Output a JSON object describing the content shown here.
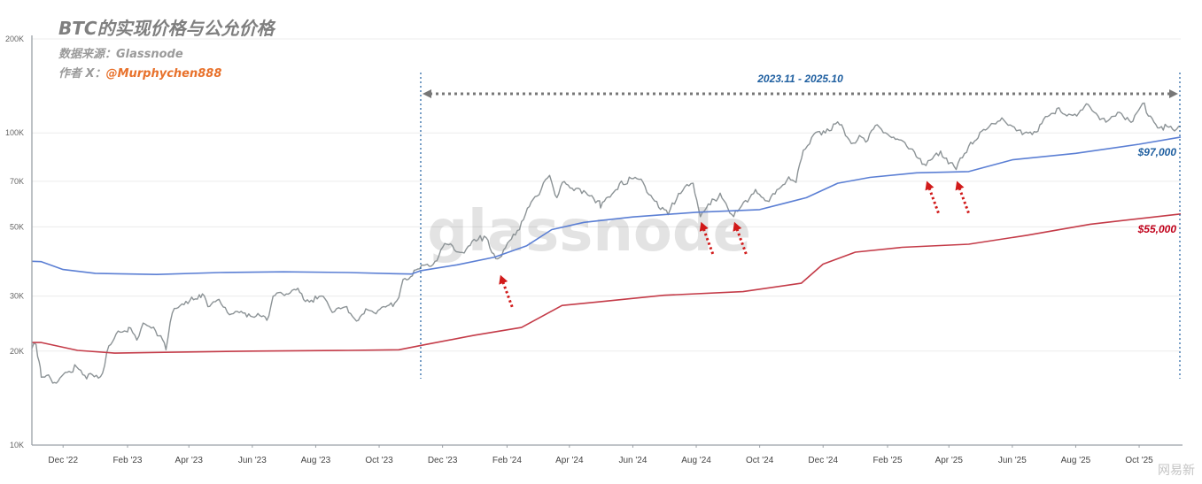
{
  "header": {
    "title": "BTC的实现价格与公允价格",
    "source": "数据来源：Glassnode",
    "author_label": "作者 X：",
    "author_handle": "@Murphychen888"
  },
  "watermark": "网易新",
  "chart_data": {
    "type": "line",
    "title": "BTC的实现价格与公允价格",
    "y_scale": "log",
    "ylim": [
      10000,
      200000
    ],
    "y_ticks": [
      10000,
      20000,
      30000,
      50000,
      70000,
      100000,
      200000
    ],
    "y_tick_labels": [
      "10K",
      "20K",
      "30K",
      "50K",
      "70K",
      "100K",
      "200K"
    ],
    "x_range": [
      "2022-11-01",
      "2025-11-10"
    ],
    "x_ticks": [
      "2022-12-01",
      "2023-02-01",
      "2023-04-01",
      "2023-06-01",
      "2023-08-01",
      "2023-10-01",
      "2023-12-01",
      "2024-02-01",
      "2024-04-01",
      "2024-06-01",
      "2024-08-01",
      "2024-10-01",
      "2024-12-01",
      "2025-02-01",
      "2025-04-01",
      "2025-06-01",
      "2025-08-01",
      "2025-10-01"
    ],
    "x_tick_labels": [
      "Dec '22",
      "Feb '23",
      "Apr '23",
      "Jun '23",
      "Aug '23",
      "Oct '23",
      "Dec '23",
      "Feb '24",
      "Apr '24",
      "Jun '24",
      "Aug '24",
      "Oct '24",
      "Dec '24",
      "Feb '25",
      "Apr '25",
      "Jun '25",
      "Aug '25",
      "Oct '25"
    ],
    "grid": true,
    "series": [
      {
        "key": "price",
        "color": "#8c9396",
        "points": [
          [
            "2022-11-01",
            20400
          ],
          [
            "2022-11-05",
            21000
          ],
          [
            "2022-11-08",
            18500
          ],
          [
            "2022-11-10",
            16500
          ],
          [
            "2022-11-15",
            16700
          ],
          [
            "2022-11-21",
            15800
          ],
          [
            "2022-11-28",
            16400
          ],
          [
            "2022-12-05",
            17100
          ],
          [
            "2022-12-14",
            17800
          ],
          [
            "2022-12-20",
            16800
          ],
          [
            "2022-12-31",
            16550
          ],
          [
            "2023-01-08",
            17000
          ],
          [
            "2023-01-14",
            20800
          ],
          [
            "2023-01-21",
            22700
          ],
          [
            "2023-01-31",
            23100
          ],
          [
            "2023-02-02",
            23800
          ],
          [
            "2023-02-10",
            21700
          ],
          [
            "2023-02-16",
            24600
          ],
          [
            "2023-02-28",
            23200
          ],
          [
            "2023-03-05",
            22400
          ],
          [
            "2023-03-10",
            20200
          ],
          [
            "2023-03-14",
            24700
          ],
          [
            "2023-03-18",
            27400
          ],
          [
            "2023-03-31",
            28400
          ],
          [
            "2023-04-11",
            30300
          ],
          [
            "2023-04-14",
            30500
          ],
          [
            "2023-04-21",
            27800
          ],
          [
            "2023-04-30",
            29300
          ],
          [
            "2023-05-12",
            26300
          ],
          [
            "2023-05-25",
            26500
          ],
          [
            "2023-06-10",
            25800
          ],
          [
            "2023-06-15",
            25100
          ],
          [
            "2023-06-21",
            30000
          ],
          [
            "2023-06-30",
            30500
          ],
          [
            "2023-07-13",
            31400
          ],
          [
            "2023-07-24",
            29200
          ],
          [
            "2023-08-10",
            29400
          ],
          [
            "2023-08-17",
            26600
          ],
          [
            "2023-08-29",
            27700
          ],
          [
            "2023-09-11",
            25100
          ],
          [
            "2023-09-20",
            27100
          ],
          [
            "2023-09-30",
            27000
          ],
          [
            "2023-10-16",
            28500
          ],
          [
            "2023-10-20",
            29700
          ],
          [
            "2023-10-24",
            33900
          ],
          [
            "2023-11-09",
            36700
          ],
          [
            "2023-11-20",
            37400
          ],
          [
            "2023-12-05",
            44000
          ],
          [
            "2023-12-18",
            41400
          ],
          [
            "2024-01-10",
            46700
          ],
          [
            "2024-01-23",
            39500
          ],
          [
            "2024-02-09",
            47100
          ],
          [
            "2024-02-15",
            52000
          ],
          [
            "2024-02-28",
            62500
          ],
          [
            "2024-03-05",
            66000
          ],
          [
            "2024-03-13",
            73100
          ],
          [
            "2024-03-20",
            62000
          ],
          [
            "2024-03-27",
            69900
          ],
          [
            "2024-04-13",
            64000
          ],
          [
            "2024-04-30",
            60600
          ],
          [
            "2024-05-01",
            57500
          ],
          [
            "2024-05-21",
            70100
          ],
          [
            "2024-06-07",
            71000
          ],
          [
            "2024-06-24",
            60300
          ],
          [
            "2024-07-05",
            54700
          ],
          [
            "2024-07-15",
            64000
          ],
          [
            "2024-07-29",
            69000
          ],
          [
            "2024-08-05",
            53900
          ],
          [
            "2024-08-24",
            64100
          ],
          [
            "2024-09-06",
            53900
          ],
          [
            "2024-09-27",
            65900
          ],
          [
            "2024-10-10",
            60300
          ],
          [
            "2024-10-29",
            72300
          ],
          [
            "2024-11-05",
            69400
          ],
          [
            "2024-11-12",
            88000
          ],
          [
            "2024-11-22",
            98900
          ],
          [
            "2024-12-05",
            103000
          ],
          [
            "2024-12-17",
            106100
          ],
          [
            "2024-12-30",
            92800
          ],
          [
            "2025-01-07",
            96900
          ],
          [
            "2025-01-13",
            94600
          ],
          [
            "2025-01-22",
            106200
          ],
          [
            "2025-02-05",
            96600
          ],
          [
            "2025-02-25",
            88700
          ],
          [
            "2025-03-10",
            78600
          ],
          [
            "2025-03-24",
            87500
          ],
          [
            "2025-04-08",
            76300
          ],
          [
            "2025-04-22",
            93400
          ],
          [
            "2025-05-08",
            103200
          ],
          [
            "2025-05-22",
            111700
          ],
          [
            "2025-06-05",
            101600
          ],
          [
            "2025-06-22",
            101000
          ],
          [
            "2025-07-14",
            119800
          ],
          [
            "2025-08-02",
            113300
          ],
          [
            "2025-08-13",
            123300
          ],
          [
            "2025-08-30",
            108200
          ],
          [
            "2025-09-14",
            115300
          ],
          [
            "2025-09-25",
            109000
          ],
          [
            "2025-10-06",
            124700
          ],
          [
            "2025-10-10",
            113200
          ],
          [
            "2025-10-17",
            106500
          ],
          [
            "2025-11-04",
            101500
          ],
          [
            "2025-11-10",
            105000
          ]
        ]
      },
      {
        "key": "fair_price",
        "color": "#5b7fd4",
        "points": [
          [
            "2022-11-01",
            38800
          ],
          [
            "2022-11-10",
            38700
          ],
          [
            "2022-12-01",
            36500
          ],
          [
            "2023-01-01",
            35500
          ],
          [
            "2023-03-01",
            35200
          ],
          [
            "2023-05-01",
            35700
          ],
          [
            "2023-07-01",
            35900
          ],
          [
            "2023-09-01",
            35700
          ],
          [
            "2023-10-15",
            35400
          ],
          [
            "2023-11-01",
            35300
          ],
          [
            "2023-11-10",
            36200
          ],
          [
            "2023-12-15",
            37800
          ],
          [
            "2024-01-20",
            40000
          ],
          [
            "2024-02-20",
            43500
          ],
          [
            "2024-03-15",
            49000
          ],
          [
            "2024-04-15",
            51700
          ],
          [
            "2024-06-01",
            53800
          ],
          [
            "2024-08-01",
            55700
          ],
          [
            "2024-10-01",
            56800
          ],
          [
            "2024-11-15",
            62000
          ],
          [
            "2024-12-15",
            69000
          ],
          [
            "2025-01-15",
            72000
          ],
          [
            "2025-03-01",
            74500
          ],
          [
            "2025-04-20",
            75200
          ],
          [
            "2025-06-01",
            82000
          ],
          [
            "2025-08-01",
            86000
          ],
          [
            "2025-10-01",
            92000
          ],
          [
            "2025-11-10",
            97000
          ]
        ]
      },
      {
        "key": "realized_price",
        "color": "#c43b48",
        "points": [
          [
            "2022-11-01",
            21300
          ],
          [
            "2022-11-10",
            21300
          ],
          [
            "2022-12-15",
            20100
          ],
          [
            "2023-01-20",
            19700
          ],
          [
            "2023-03-01",
            19800
          ],
          [
            "2023-06-01",
            20000
          ],
          [
            "2023-09-01",
            20100
          ],
          [
            "2023-10-20",
            20200
          ],
          [
            "2023-11-15",
            21000
          ],
          [
            "2024-01-01",
            22500
          ],
          [
            "2024-02-15",
            23800
          ],
          [
            "2024-03-25",
            28000
          ],
          [
            "2024-05-01",
            28800
          ],
          [
            "2024-07-01",
            30200
          ],
          [
            "2024-09-15",
            31000
          ],
          [
            "2024-11-10",
            33000
          ],
          [
            "2024-12-01",
            38000
          ],
          [
            "2025-01-01",
            41500
          ],
          [
            "2025-02-15",
            43000
          ],
          [
            "2025-04-20",
            44000
          ],
          [
            "2025-06-15",
            47000
          ],
          [
            "2025-08-15",
            51000
          ],
          [
            "2025-11-10",
            55000
          ]
        ]
      }
    ],
    "bracket": {
      "start": "2023-11-10",
      "end": "2025-11-10",
      "label": "2023.11 - 2025.10",
      "color": "#1f5fa0"
    },
    "value_labels": [
      {
        "series": "fair_price",
        "text": "$97,000",
        "color": "#1f5fa0"
      },
      {
        "series": "realized_price",
        "text": "$55,000",
        "color": "#c0001a"
      }
    ],
    "arrows": [
      {
        "date": "2024-01-25",
        "value": 35500
      },
      {
        "date": "2024-08-05",
        "value": 52500
      },
      {
        "date": "2024-09-06",
        "value": 52500
      },
      {
        "date": "2025-03-10",
        "value": 71000
      },
      {
        "date": "2025-04-08",
        "value": 71000
      }
    ],
    "watermark_text": "glassnode"
  }
}
